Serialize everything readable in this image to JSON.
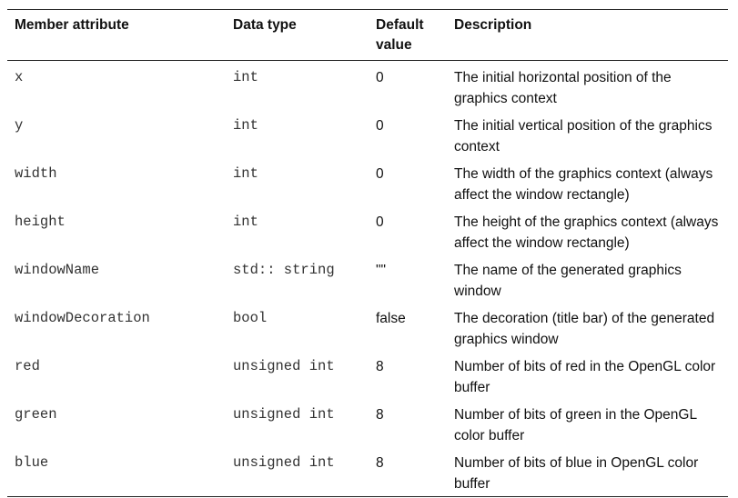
{
  "table": {
    "headers": {
      "attribute": "Member attribute",
      "type": "Data type",
      "default": "Default value",
      "description": "Description"
    },
    "rows": [
      {
        "attribute": "x",
        "type": "int",
        "default": "0",
        "description": "The initial horizontal position of the graphics context"
      },
      {
        "attribute": "y",
        "type": "int",
        "default": "0",
        "description": "The initial vertical position of the graphics context"
      },
      {
        "attribute": "width",
        "type": "int",
        "default": "0",
        "description": "The width of the graphics context (always affect the window rectangle)"
      },
      {
        "attribute": "height",
        "type": "int",
        "default": "0",
        "description": "The height of the graphics context (always affect the window rectangle)"
      },
      {
        "attribute": "windowName",
        "type": "std:: string",
        "default": "\"\"",
        "description": "The name of the generated graphics window"
      },
      {
        "attribute": "windowDecoration",
        "type": "bool",
        "default": "false",
        "description": "The decoration (title bar) of the generated graphics window"
      },
      {
        "attribute": "red",
        "type": "unsigned int",
        "default": "8",
        "description": "Number of bits of red in the OpenGL color buffer"
      },
      {
        "attribute": "green",
        "type": "unsigned int",
        "default": "8",
        "description": "Number of bits of green in the OpenGL color buffer"
      },
      {
        "attribute": "blue",
        "type": "unsigned int",
        "default": "8",
        "description": "Number of bits of blue in OpenGL color buffer"
      }
    ]
  }
}
